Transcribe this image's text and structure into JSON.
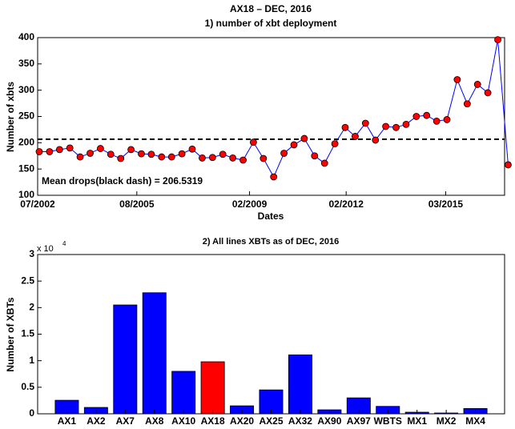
{
  "chart_data": [
    {
      "type": "line",
      "title": "AX18 – DEC, 2016",
      "subtitle": "1) number of xbt deployment",
      "xlabel": "Dates",
      "ylabel": "Number of xbts",
      "x": [
        2002.55,
        2002.87,
        2003.18,
        2003.5,
        2003.82,
        2004.13,
        2004.45,
        2004.77,
        2005.08,
        2005.4,
        2005.72,
        2006.03,
        2006.35,
        2006.66,
        2006.98,
        2007.3,
        2007.61,
        2007.93,
        2008.25,
        2008.56,
        2008.88,
        2009.2,
        2009.51,
        2009.83,
        2010.15,
        2010.46,
        2010.78,
        2011.1,
        2011.41,
        2011.73,
        2012.05,
        2012.36,
        2012.68,
        2012.99,
        2013.31,
        2013.63,
        2013.94,
        2014.26,
        2014.58,
        2014.89,
        2015.21,
        2015.53,
        2015.84,
        2016.16,
        2016.48,
        2016.79,
        2017.11
      ],
      "values": [
        183,
        183,
        187,
        190,
        173,
        180,
        189,
        178,
        170,
        187,
        179,
        178,
        173,
        173,
        179,
        188,
        171,
        172,
        178,
        171,
        167,
        201,
        170,
        135,
        180,
        196,
        208,
        175,
        161,
        198,
        229,
        212,
        237,
        205,
        231,
        229,
        235,
        250,
        252,
        241,
        244,
        320,
        274,
        311,
        295,
        396,
        158
      ],
      "color": "#0000ff",
      "marker_color": "#ff0000",
      "mean": 206.5319,
      "mean_color": "#000000",
      "annotation": "Mean drops(black dash) = 206.5319",
      "xlim": [
        2002.5,
        2017.0
      ],
      "xticks": [
        {
          "value": 2002.5,
          "label": "07/2002"
        },
        {
          "value": 2005.58,
          "label": "08/2005"
        },
        {
          "value": 2009.08,
          "label": "02/2009"
        },
        {
          "value": 2012.08,
          "label": "02/2012"
        },
        {
          "value": 2015.17,
          "label": "03/2015"
        }
      ],
      "ylim": [
        100,
        400
      ],
      "yticks": [
        100,
        150,
        200,
        250,
        300,
        350,
        400
      ]
    },
    {
      "type": "bar",
      "title": "2) All lines XBTs as of DEC, 2016",
      "ylabel": "Number of XBTs",
      "y_multiplier": {
        "base": "x 10",
        "exponent": "4"
      },
      "categories": [
        "AX1",
        "AX2",
        "AX7",
        "AX8",
        "AX10",
        "AX18",
        "AX20",
        "AX25",
        "AX32",
        "AX90",
        "AX97",
        "WBTS",
        "MX1",
        "MX2",
        "MX4"
      ],
      "values": [
        2550,
        1200,
        20500,
        22800,
        8000,
        9800,
        1500,
        4500,
        11100,
        750,
        3000,
        1400,
        300,
        150,
        1000
      ],
      "colors": [
        "#0000ff",
        "#0000ff",
        "#0000ff",
        "#0000ff",
        "#0000ff",
        "#ff0000",
        "#0000ff",
        "#0000ff",
        "#0000ff",
        "#0000ff",
        "#0000ff",
        "#0000ff",
        "#0000ff",
        "#0000ff",
        "#0000ff"
      ],
      "ylim": [
        0,
        30000
      ],
      "yticks": [
        {
          "value": 0,
          "label": "0"
        },
        {
          "value": 5000,
          "label": "0.5"
        },
        {
          "value": 10000,
          "label": "1"
        },
        {
          "value": 15000,
          "label": "1.5"
        },
        {
          "value": 20000,
          "label": "2"
        },
        {
          "value": 25000,
          "label": "2.5"
        },
        {
          "value": 30000,
          "label": "3"
        }
      ]
    }
  ]
}
